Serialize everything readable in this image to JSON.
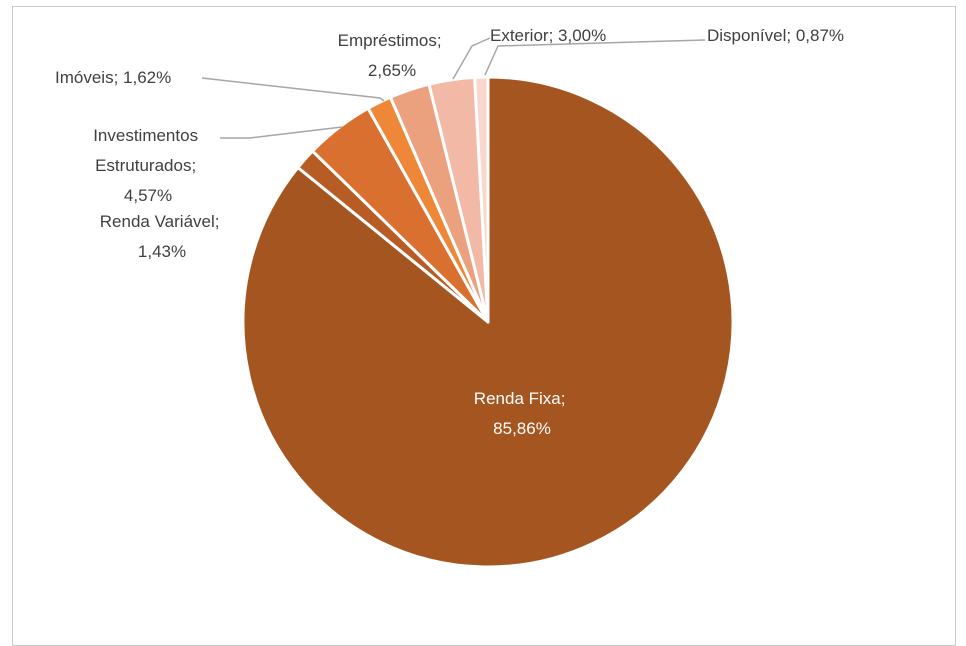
{
  "chart_data": {
    "type": "pie",
    "start_angle_deg": 0,
    "direction": "clockwise",
    "slices": [
      {
        "name": "Renda Fixa",
        "value": 85.86,
        "value_label": "85,86%",
        "color": "#A55520"
      },
      {
        "name": "Renda Variável",
        "value": 1.43,
        "value_label": "1,43%",
        "color": "#B85C25"
      },
      {
        "name": "Investimentos Estruturados",
        "value": 4.57,
        "value_label": "4,57%",
        "color": "#D97030"
      },
      {
        "name": "Imóveis",
        "value": 1.62,
        "value_label": "1,62%",
        "color": "#EE8838"
      },
      {
        "name": "Empréstimos",
        "value": 2.65,
        "value_label": "2,65%",
        "color": "#EBA07E"
      },
      {
        "name": "Exterior",
        "value": 3.0,
        "value_label": "3,00%",
        "color": "#F2BAA6"
      },
      {
        "name": "Disponível",
        "value": 0.87,
        "value_label": "0,87%",
        "color": "#F8D8CE"
      }
    ]
  },
  "labels": {
    "renda_fixa": [
      "Renda Fixa;",
      "85,86%"
    ],
    "renda_variavel": [
      "Renda Variável;",
      "1,43%"
    ],
    "investimentos": [
      "Investimentos",
      "Estruturados;",
      "4,57%"
    ],
    "imoveis": [
      "Imóveis; 1,62%"
    ],
    "emprestimos": [
      "Empréstimos;",
      "2,65%"
    ],
    "exterior": [
      "Exterior; 3,00%"
    ],
    "disponivel": [
      "Disponível; 0,87%"
    ]
  }
}
